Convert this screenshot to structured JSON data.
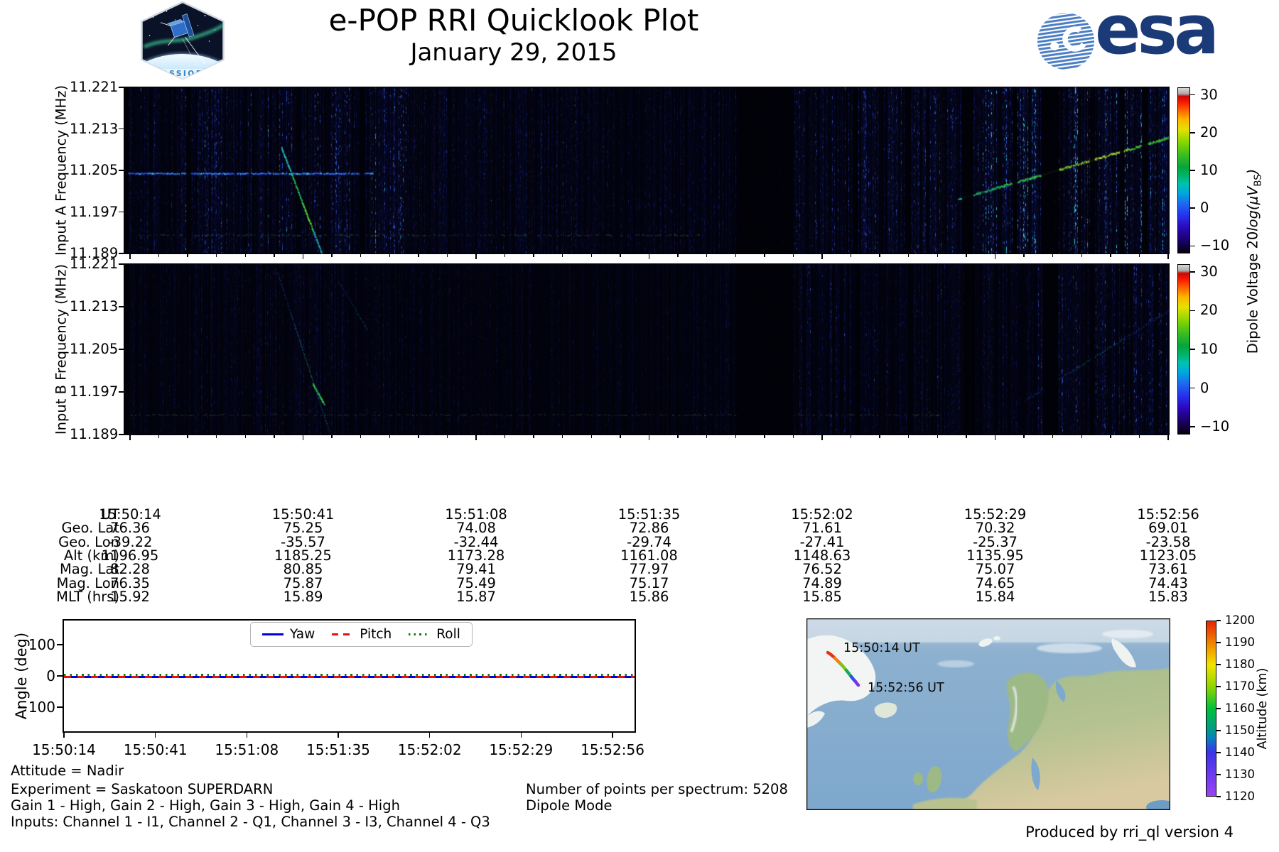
{
  "header": {
    "title": "e-POP RRI Quicklook Plot",
    "subtitle": "January 29, 2015",
    "cassiope_label": "CASSIOPE",
    "esa_label": "esa"
  },
  "spectrograms": {
    "colorbar_label": {
      "prefix": "Dipole Voltage 20",
      "func": "log(μV",
      "sub": "BS",
      "suffix": ")"
    }
  },
  "annotations": {
    "attitude": "Attitude = Nadir",
    "experiment": "Experiment = Saskatoon SUPERDARN",
    "gains": "Gain 1 - High, Gain 2 - High, Gain 3 - High, Gain 4 - High",
    "inputs": "Inputs: Channel 1 - I1, Channel 2 - Q1, Channel 3 - I3, Channel 4 - Q3",
    "points_per_spectrum": "Number of points per spectrum: 5208",
    "mode": "Dipole Mode",
    "produced_by": "Produced by rri_ql version 4"
  },
  "chart_data": [
    {
      "type": "heatmap",
      "name": "input_a_spectrogram",
      "ylabel": "Input A Frequency (MHz)",
      "yticks": [
        "11.221",
        "11.213",
        "11.205",
        "11.197",
        "11.189"
      ],
      "ylim": [
        11.189,
        11.221
      ],
      "xticks": [
        "15:50:14",
        "15:50:41",
        "15:51:08",
        "15:51:35",
        "15:52:02",
        "15:52:29",
        "15:52:56"
      ],
      "colorbar": {
        "label": "Dipole Voltage 20log(μV_BS)",
        "tick_labels": [
          "30",
          "20",
          "10",
          "0",
          "−10"
        ],
        "tick_values": [
          30,
          20,
          10,
          0,
          -10
        ],
        "lim": [
          -12,
          32
        ]
      },
      "background": "#03030c",
      "noise_regions": [
        [
          0,
          0.055,
          0.42
        ],
        [
          0.055,
          0.27,
          0.58
        ],
        [
          0.27,
          0.47,
          0.38
        ],
        [
          0.47,
          0.62,
          0.33
        ],
        [
          0.62,
          0.82,
          0.5
        ],
        [
          0.82,
          1.01,
          0.8
        ]
      ],
      "dark_bands": [
        [
          0,
          0.004
        ],
        [
          0.059,
          0.064
        ],
        [
          0.225,
          0.23
        ],
        [
          0.586,
          0.641
        ],
        [
          0.697,
          0.702
        ],
        [
          0.747,
          0.753
        ],
        [
          0.802,
          0.813
        ],
        [
          0.85,
          0.855
        ],
        [
          0.878,
          0.895
        ],
        [
          0.924,
          0.929
        ],
        [
          0.953,
          0.957
        ],
        [
          0.974,
          0.98
        ]
      ],
      "h_lines": [
        {
          "y": 0.518,
          "x0": 0.002,
          "x1": 0.238,
          "style": "bright",
          "alpha": 0.95
        },
        {
          "y": 0.89,
          "x0": 0.01,
          "x1": 0.55,
          "style": "dotted",
          "alpha": 0.5
        }
      ],
      "traces": [
        {
          "x0": 0.15,
          "y0": 0.36,
          "x1": 0.19,
          "y1": 1.02,
          "colors": [
            "#28c8b0",
            "#2ed464",
            "#5adf3a",
            "#22b6c8"
          ],
          "alpha": 0.8,
          "width": 2
        },
        {
          "x0": 0.798,
          "y0": 0.67,
          "x1": 1.0,
          "y1": 0.3,
          "colors": [
            "#20b868",
            "#38cf4f",
            "#7fd82e",
            "#b4e030",
            "#49d838"
          ],
          "alpha": 0.9,
          "width": 2
        }
      ]
    },
    {
      "type": "heatmap",
      "name": "input_b_spectrogram",
      "ylabel": "Input B Frequency (MHz)",
      "yticks": [
        "11.221",
        "11.213",
        "11.205",
        "11.197",
        "11.189"
      ],
      "ylim": [
        11.189,
        11.221
      ],
      "xticks": [
        "15:50:14",
        "15:50:41",
        "15:51:08",
        "15:51:35",
        "15:52:02",
        "15:52:29",
        "15:52:56"
      ],
      "colorbar": {
        "label": "Dipole Voltage 20log(μV_BS)",
        "tick_labels": [
          "30",
          "20",
          "10",
          "0",
          "−10"
        ],
        "tick_values": [
          30,
          20,
          10,
          0,
          -10
        ],
        "lim": [
          -12,
          32
        ]
      },
      "background": "#03030c",
      "noise_regions": [
        [
          0,
          0.06,
          0.25
        ],
        [
          0.06,
          0.25,
          0.33
        ],
        [
          0.25,
          0.6,
          0.22
        ],
        [
          0.6,
          0.87,
          0.38
        ],
        [
          0.87,
          1.01,
          0.5
        ]
      ],
      "dark_bands": [
        [
          0,
          0.004
        ],
        [
          0.586,
          0.64
        ],
        [
          0.7,
          0.704
        ],
        [
          0.75,
          0.755
        ],
        [
          0.804,
          0.814
        ],
        [
          0.88,
          0.894
        ],
        [
          0.925,
          0.929
        ]
      ],
      "h_lines": [
        {
          "y": 0.885,
          "x0": 0.0,
          "x1": 0.78,
          "style": "dotted",
          "alpha": 0.38
        }
      ],
      "traces": [
        {
          "x0": 0.146,
          "y0": 0.04,
          "x1": 0.196,
          "y1": 0.98,
          "colors": [
            "#2a62d8",
            "#28b0c8",
            "#32cf6a",
            "#2890d0"
          ],
          "alpha": 0.45,
          "width": 1
        },
        {
          "x0": 0.18,
          "y0": 0.7,
          "x1": 0.191,
          "y1": 0.82,
          "colors": [
            "#38df60"
          ],
          "alpha": 0.85,
          "width": 2
        },
        {
          "x0": 0.205,
          "y0": 0.1,
          "x1": 0.232,
          "y1": 0.38,
          "colors": [
            "#2a62d8",
            "#28b0c8"
          ],
          "alpha": 0.35,
          "width": 1
        },
        {
          "x0": 0.862,
          "y0": 0.8,
          "x1": 1.0,
          "y1": 0.27,
          "colors": [
            "#2a6ae0",
            "#2ab4cc",
            "#2a6ae0"
          ],
          "alpha": 0.5,
          "width": 1
        }
      ]
    },
    {
      "type": "table",
      "name": "ephemeris",
      "rows": [
        {
          "label": "UT",
          "values": [
            "15:50:14",
            "15:50:41",
            "15:51:08",
            "15:51:35",
            "15:52:02",
            "15:52:29",
            "15:52:56"
          ]
        },
        {
          "label": "Geo. Lat",
          "values": [
            "76.36",
            "75.25",
            "74.08",
            "72.86",
            "71.61",
            "70.32",
            "69.01"
          ]
        },
        {
          "label": "Geo. Lon",
          "values": [
            "-39.22",
            "-35.57",
            "-32.44",
            "-29.74",
            "-27.41",
            "-25.37",
            "-23.58"
          ]
        },
        {
          "label": "Alt (km)",
          "values": [
            "1196.95",
            "1185.25",
            "1173.28",
            "1161.08",
            "1148.63",
            "1135.95",
            "1123.05"
          ]
        },
        {
          "label": "Mag. Lat",
          "values": [
            "82.28",
            "80.85",
            "79.41",
            "77.97",
            "76.52",
            "75.07",
            "73.61"
          ]
        },
        {
          "label": "Mag. Lon",
          "values": [
            "76.35",
            "75.87",
            "75.49",
            "75.17",
            "74.89",
            "74.65",
            "74.43"
          ]
        },
        {
          "label": "MLT (hrs)",
          "values": [
            "15.92",
            "15.89",
            "15.87",
            "15.86",
            "15.85",
            "15.84",
            "15.83"
          ]
        }
      ]
    },
    {
      "type": "line",
      "name": "attitude_angles",
      "ylabel": "Angle (deg)",
      "ytick_labels": [
        "100",
        "0",
        "−100"
      ],
      "ytick_values": [
        100,
        0,
        -100
      ],
      "ylim": [
        -185,
        185
      ],
      "xticks": [
        "15:50:14",
        "15:50:41",
        "15:51:08",
        "15:51:35",
        "15:52:02",
        "15:52:29",
        "15:52:56"
      ],
      "legend_position": "upper center",
      "series": [
        {
          "name": "Yaw",
          "color": "#0000dd",
          "style": "solid",
          "values": [
            0,
            0,
            0,
            0,
            0,
            0,
            0
          ]
        },
        {
          "name": "Pitch",
          "color": "#e51111",
          "style": "dashed",
          "values": [
            0,
            0,
            0,
            0,
            0,
            0,
            0
          ]
        },
        {
          "name": "Roll",
          "color": "#0e7a0e",
          "style": "dotted",
          "values": [
            0,
            0,
            0,
            0,
            0,
            0,
            0
          ]
        }
      ]
    },
    {
      "type": "map",
      "name": "ground_track_map",
      "track_labels": [
        "15:50:14 UT",
        "15:52:56 UT"
      ],
      "track_altitude_km": [
        1196.95,
        1123.05
      ],
      "colorbar": {
        "label": "Altitude (km)",
        "tick_values": [
          1200,
          1190,
          1180,
          1170,
          1160,
          1150,
          1140,
          1130,
          1120
        ],
        "lim": [
          1120,
          1200
        ]
      }
    }
  ]
}
